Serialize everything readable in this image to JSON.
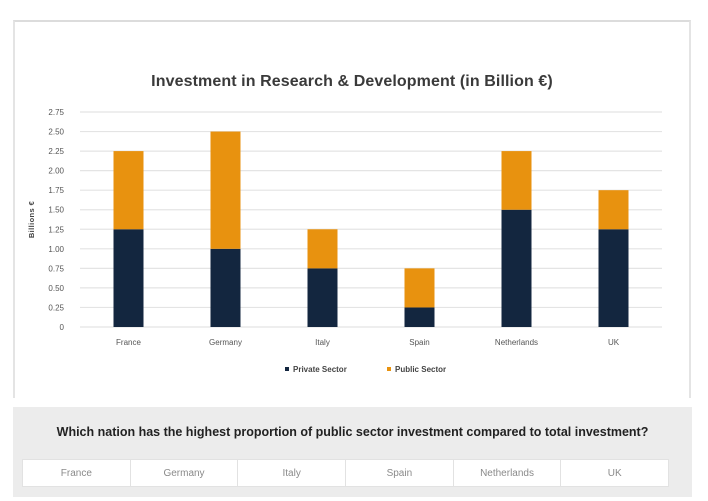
{
  "chart_data": {
    "type": "bar",
    "stacked": true,
    "title": "Investment in Research & Development (in Billion €)",
    "xlabel": "",
    "ylabel": "Billions €",
    "ylim": [
      0,
      2.75
    ],
    "yticks": [
      "0",
      "0.25",
      "0.50",
      "0.75",
      "1.00",
      "1.25",
      "1.50",
      "1.75",
      "2.00",
      "2.25",
      "2.50",
      "2.75"
    ],
    "ytick_values": [
      0,
      0.25,
      0.5,
      0.75,
      1.0,
      1.25,
      1.5,
      1.75,
      2.0,
      2.25,
      2.5,
      2.75
    ],
    "grid": true,
    "categories": [
      "France",
      "Germany",
      "Italy",
      "Spain",
      "Netherlands",
      "UK"
    ],
    "series": [
      {
        "name": "Private Sector",
        "color": "#13263F",
        "values": [
          1.25,
          1.0,
          0.75,
          0.25,
          1.5,
          1.25
        ]
      },
      {
        "name": "Public Sector",
        "color": "#E8920F",
        "values": [
          1.0,
          1.5,
          0.5,
          0.5,
          0.75,
          0.5
        ]
      }
    ],
    "legend_position": "bottom-center"
  },
  "question": {
    "text": "Which nation has the highest proportion of public sector investment compared to total investment?",
    "options": [
      "France",
      "Germany",
      "Italy",
      "Spain",
      "Netherlands",
      "UK"
    ]
  }
}
